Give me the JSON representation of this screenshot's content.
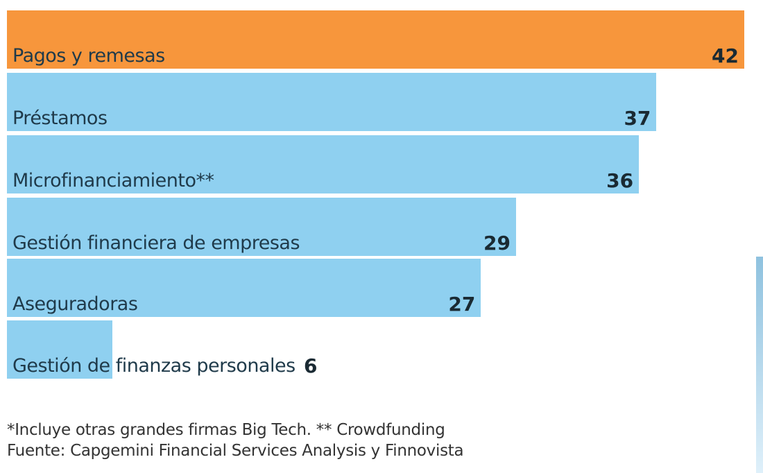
{
  "chart_data": {
    "type": "bar",
    "orientation": "horizontal",
    "categories": [
      "Pagos y remesas",
      "Préstamos",
      "Microfinanciamiento**",
      "Gestión financiera de empresas",
      "Aseguradoras",
      "Gestión de finanzas personales"
    ],
    "values": [
      42,
      37,
      36,
      29,
      27,
      6
    ],
    "value_labels": [
      "42",
      "37",
      "36",
      "29",
      "27",
      "6"
    ],
    "colors": [
      "#f7963c",
      "#8fd0f0",
      "#8fd0f0",
      "#8fd0f0",
      "#8fd0f0",
      "#8fd0f0"
    ],
    "grid": false,
    "xlim": [
      0,
      42
    ]
  },
  "footnotes": [
    "*Incluye otras grandes firmas Big Tech. ** Crowdfunding",
    "Fuente: Capgemini Financial Services Analysis y Finnovista"
  ]
}
